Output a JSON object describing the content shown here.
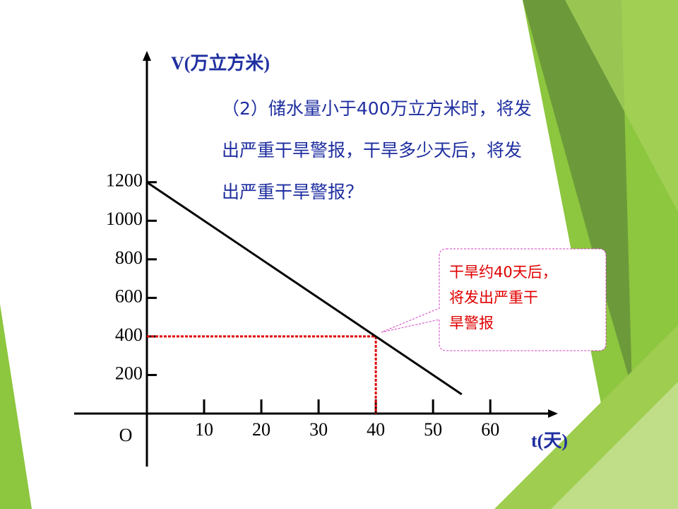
{
  "chart_data": {
    "type": "line",
    "y_label": "V(万立方米)",
    "x_label": "t(天)",
    "origin_label": "O",
    "x": [
      0,
      55
    ],
    "series": [
      {
        "color": "#000000",
        "values": [
          1200,
          100
        ]
      }
    ],
    "xlim": [
      -12.7,
      71.2
    ],
    "ylim": [
      -275,
      1870
    ],
    "xticks": [
      10,
      20,
      30,
      40,
      50,
      60
    ],
    "yticks": [
      200,
      400,
      600,
      800,
      1000,
      1200
    ],
    "guide": {
      "x": 40,
      "y": 400,
      "color": "#e00000"
    },
    "question": [
      "（2）储水量小于400万立方米时，将发",
      "出严重干旱警报，干旱多少天后，将发",
      "出严重干旱警报？"
    ],
    "callout": [
      "干旱约40天后，",
      "将发出严重干",
      "旱警报"
    ]
  }
}
